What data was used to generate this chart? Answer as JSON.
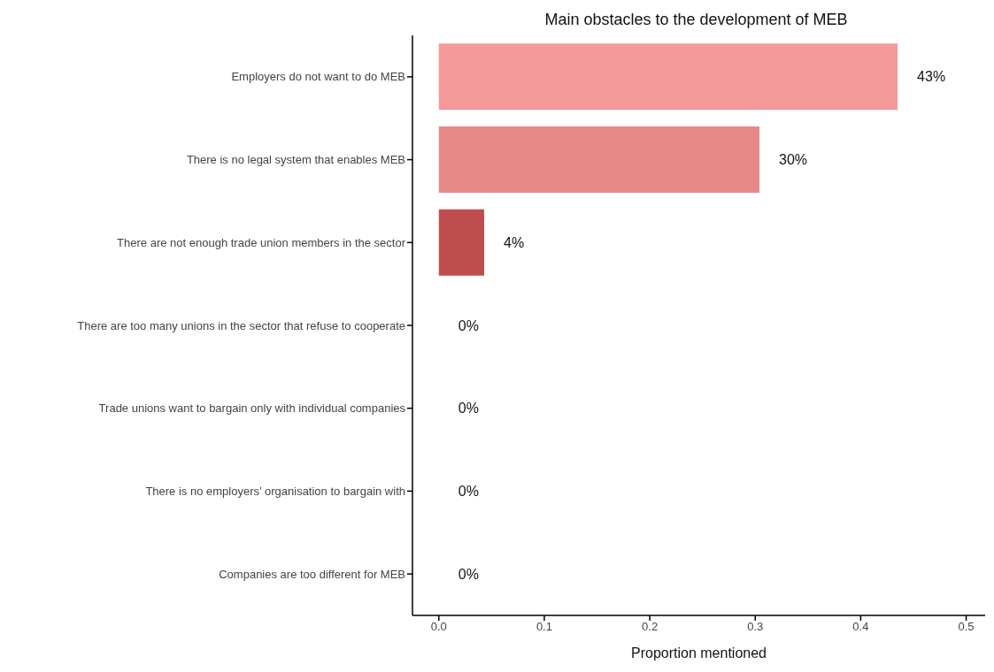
{
  "chart_data": {
    "type": "bar",
    "orientation": "horizontal",
    "title": "Main obstacles to the development of MEB",
    "xlabel": "Proportion mentioned",
    "categories": [
      "Employers do not want to do MEB",
      "There is no legal system that enables MEB",
      "There are not enough trade union members in the sector",
      "There are too many unions in the sector that refuse to cooperate",
      "Trade unions want to bargain only with individual companies",
      "There is no employers’ organisation to bargain with",
      "Companies are too different for MEB"
    ],
    "values": [
      0.435,
      0.304,
      0.043,
      0,
      0,
      0,
      0
    ],
    "value_labels": [
      "43%",
      "30%",
      "4%",
      "0%",
      "0%",
      "0%",
      "0%"
    ],
    "colors": [
      "#f4999a",
      "#e88989",
      "#c04d4e",
      "#c04d4e",
      "#c04d4e",
      "#c04d4e",
      "#c04d4e"
    ],
    "xlim": [
      -0.025,
      0.518
    ],
    "xticks": [
      {
        "value": 0,
        "label": "0.0"
      },
      0.1,
      0.2,
      0.3,
      0.4,
      0.5
    ],
    "grid": false,
    "legend": false
  }
}
